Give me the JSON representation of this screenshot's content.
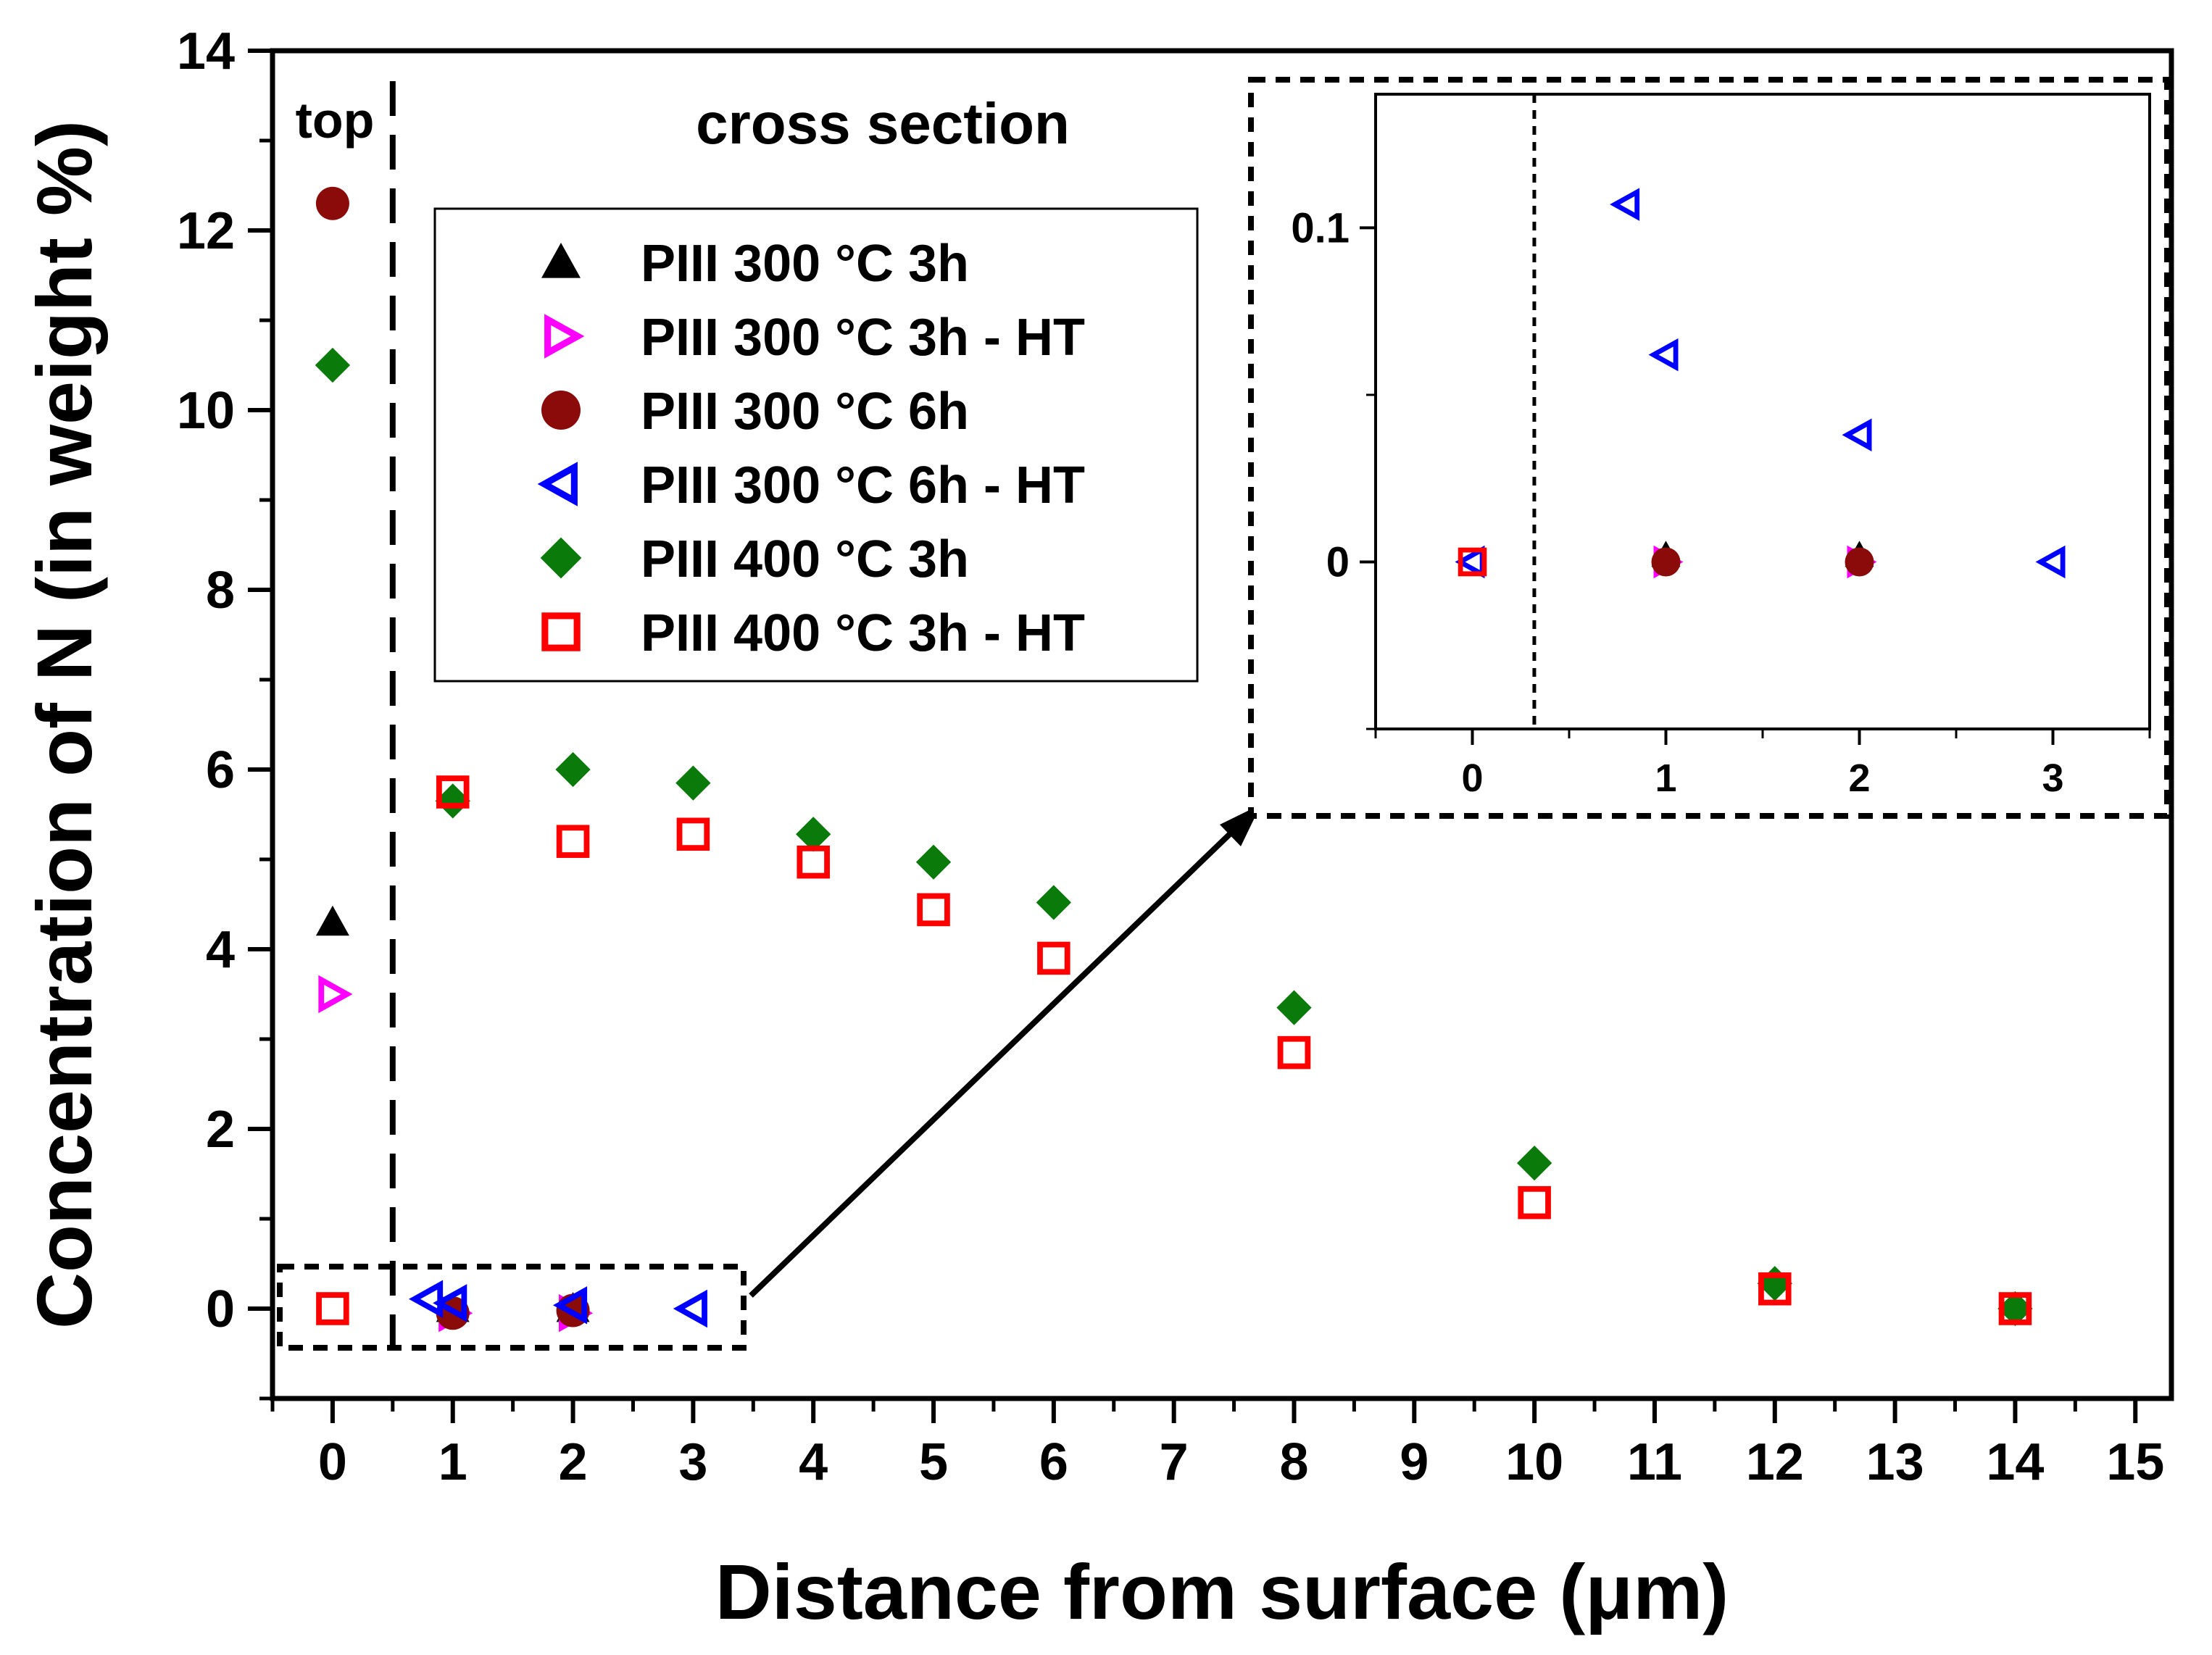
{
  "chart_data": {
    "type": "scatter",
    "xlabel": "Distance from surface (μm)",
    "ylabel": "Concentration of N (in weight %)",
    "xlim": [
      -0.5,
      15.3
    ],
    "ylim": [
      -1,
      14
    ],
    "x_ticks": [
      0,
      1,
      2,
      3,
      4,
      5,
      6,
      7,
      8,
      9,
      10,
      11,
      12,
      13,
      14,
      15
    ],
    "y_ticks": [
      0,
      2,
      4,
      6,
      8,
      10,
      12,
      14
    ],
    "annotations": {
      "top": "top",
      "cross_section": "cross section"
    },
    "divider_x": 0.5,
    "legend_position": "upper-center",
    "series": [
      {
        "name": "PIII 300 °C 3h",
        "marker": "triangle-up",
        "filled": true,
        "color": "#000000",
        "points": [
          [
            0,
            4.3
          ],
          [
            1,
            0
          ],
          [
            2,
            0
          ]
        ]
      },
      {
        "name": "PIII 300 °C 3h - HT",
        "marker": "triangle-right",
        "filled": false,
        "color": "#ff00ff",
        "points": [
          [
            0,
            3.5
          ],
          [
            1,
            -0.05
          ],
          [
            2,
            -0.05
          ]
        ]
      },
      {
        "name": "PIII 300 °C 6h",
        "marker": "circle",
        "filled": true,
        "color": "#8b0a0a",
        "points": [
          [
            0,
            12.3
          ],
          [
            1,
            -0.05
          ],
          [
            2,
            -0.02
          ]
        ]
      },
      {
        "name": "PIII 300 °C 6h - HT",
        "marker": "triangle-left",
        "filled": false,
        "color": "#0000ff",
        "points": [
          [
            0.8,
            0.107
          ],
          [
            1,
            0.062
          ],
          [
            2,
            0.038
          ],
          [
            3,
            0
          ]
        ]
      },
      {
        "name": "PIII 400 °C 3h",
        "marker": "diamond",
        "filled": true,
        "color": "#0a7a0a",
        "points": [
          [
            0,
            10.5
          ],
          [
            1,
            5.65
          ],
          [
            2,
            6.0
          ],
          [
            3,
            5.85
          ],
          [
            4,
            5.28
          ],
          [
            5,
            4.97
          ],
          [
            6,
            4.52
          ],
          [
            8,
            3.35
          ],
          [
            10,
            1.62
          ],
          [
            12,
            0.28
          ],
          [
            14,
            0
          ]
        ]
      },
      {
        "name": "PIII 400 °C 3h - HT",
        "marker": "square",
        "filled": false,
        "color": "#ff0000",
        "points": [
          [
            0,
            0
          ],
          [
            1,
            5.75
          ],
          [
            2,
            5.2
          ],
          [
            3,
            5.28
          ],
          [
            4,
            4.97
          ],
          [
            5,
            4.44
          ],
          [
            6,
            3.9
          ],
          [
            8,
            2.85
          ],
          [
            10,
            1.18
          ],
          [
            12,
            0.22
          ],
          [
            14,
            0
          ]
        ]
      }
    ],
    "inset": {
      "xlim": [
        -0.5,
        3.5
      ],
      "ylim": [
        -0.05,
        0.14
      ],
      "x_ticks": [
        0,
        1,
        2,
        3
      ],
      "y_ticks": [
        0,
        0.1
      ],
      "y_tick_labels": [
        "0",
        "0.1"
      ],
      "divider_x": 0.32,
      "series": [
        {
          "name": "PIII 300 °C 3h",
          "points": [
            [
              1,
              0.002
            ],
            [
              2,
              0.002
            ]
          ]
        },
        {
          "name": "PIII 300 °C 3h - HT",
          "points": [
            [
              1,
              0
            ],
            [
              2,
              0
            ]
          ]
        },
        {
          "name": "PIII 300 °C 6h",
          "points": [
            [
              1,
              0
            ],
            [
              2,
              0
            ]
          ]
        },
        {
          "name": "PIII 300 °C 6h - HT",
          "points": [
            [
              0,
              0
            ],
            [
              0.8,
              0.107
            ],
            [
              1,
              0.062
            ],
            [
              2,
              0.038
            ],
            [
              3,
              0
            ]
          ]
        },
        {
          "name": "PIII 400 °C 3h",
          "points": []
        },
        {
          "name": "PIII 400 °C 3h - HT",
          "points": [
            [
              0,
              0
            ]
          ]
        }
      ]
    }
  }
}
